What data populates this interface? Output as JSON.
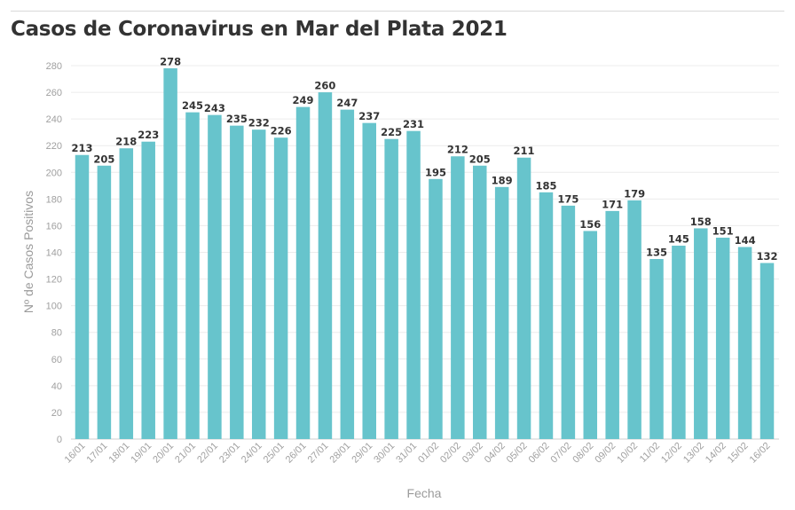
{
  "header": {
    "title": "Casos de Coronavirus en Mar del Plata 2021"
  },
  "chart_data": {
    "type": "bar",
    "title": "Casos de Coronavirus en Mar del Plata 2021",
    "xlabel": "Fecha",
    "ylabel": "Nº de Casos Positivos",
    "ylim": [
      0,
      280
    ],
    "yticks": [
      0,
      20,
      40,
      60,
      80,
      100,
      120,
      140,
      160,
      180,
      200,
      220,
      240,
      260,
      280
    ],
    "grid": true,
    "bar_color": "#67c4cc",
    "categories": [
      "16/01",
      "17/01",
      "18/01",
      "19/01",
      "20/01",
      "21/01",
      "22/01",
      "23/01",
      "24/01",
      "25/01",
      "26/01",
      "27/01",
      "28/01",
      "29/01",
      "30/01",
      "31/01",
      "01/02",
      "02/02",
      "03/02",
      "04/02",
      "05/02",
      "06/02",
      "07/02",
      "08/02",
      "09/02",
      "10/02",
      "11/02",
      "12/02",
      "13/02",
      "14/02",
      "15/02",
      "16/02"
    ],
    "values": [
      213,
      205,
      218,
      223,
      278,
      245,
      243,
      235,
      232,
      226,
      249,
      260,
      247,
      237,
      225,
      231,
      195,
      212,
      205,
      189,
      211,
      185,
      175,
      156,
      171,
      179,
      135,
      145,
      158,
      151,
      144,
      132
    ]
  }
}
